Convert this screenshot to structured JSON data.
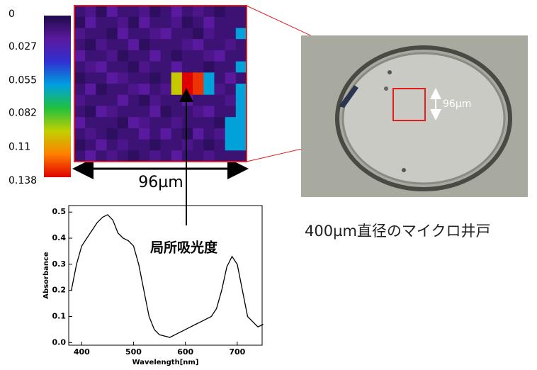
{
  "chart_data": [
    {
      "type": "heatmap",
      "zlim": [
        0,
        0.138
      ],
      "zticks": [
        0,
        0.027,
        0.055,
        0.082,
        0.11,
        0.138
      ],
      "colormap": [
        "#1f0a4a",
        "#5a1a9e",
        "#3030d0",
        "#00a0e0",
        "#20c040",
        "#c0d000",
        "#ff8000",
        "#e00000"
      ],
      "values": [
        [
          0.01,
          0.015,
          0.005,
          0.02,
          0.01,
          0.01,
          0.015,
          0.005,
          0.01,
          0.02,
          0.01,
          0.015,
          0.01,
          0.005,
          0.01,
          0.01
        ],
        [
          0.005,
          0.02,
          0.01,
          0.01,
          0.015,
          0.005,
          0.02,
          0.01,
          0.01,
          0.015,
          0.005,
          0.01,
          0.02,
          0.01,
          0.01,
          0.01
        ],
        [
          0.015,
          0.01,
          0.01,
          0.005,
          0.02,
          0.01,
          0.01,
          0.015,
          0.02,
          0.01,
          0.01,
          0.005,
          0.015,
          0.01,
          0.01,
          0.06
        ],
        [
          0.01,
          0.005,
          0.015,
          0.01,
          0.01,
          0.02,
          0.005,
          0.01,
          0.01,
          0.01,
          0.015,
          0.02,
          0.01,
          0.01,
          0.015,
          0.01
        ],
        [
          0.02,
          0.01,
          0.01,
          0.015,
          0.005,
          0.01,
          0.01,
          0.02,
          0.01,
          0.005,
          0.01,
          0.01,
          0.015,
          0.02,
          0.01,
          0.01
        ],
        [
          0.01,
          0.015,
          0.02,
          0.01,
          0.01,
          0.005,
          0.015,
          0.01,
          0.01,
          0.02,
          0.01,
          0.01,
          0.005,
          0.01,
          0.01,
          0.06
        ],
        [
          0.005,
          0.01,
          0.01,
          0.02,
          0.015,
          0.01,
          0.01,
          0.005,
          0.01,
          0.1,
          0.138,
          0.13,
          0.06,
          0.01,
          0.02,
          0.01
        ],
        [
          0.01,
          0.02,
          0.005,
          0.01,
          0.01,
          0.015,
          0.02,
          0.01,
          0.015,
          0.1,
          0.138,
          0.13,
          0.06,
          0.015,
          0.01,
          0.06
        ],
        [
          0.015,
          0.01,
          0.01,
          0.01,
          0.02,
          0.01,
          0.005,
          0.015,
          0.01,
          0.01,
          0.02,
          0.01,
          0.01,
          0.01,
          0.015,
          0.06
        ],
        [
          0.01,
          0.005,
          0.02,
          0.015,
          0.01,
          0.01,
          0.01,
          0.02,
          0.005,
          0.01,
          0.01,
          0.015,
          0.02,
          0.01,
          0.01,
          0.06
        ],
        [
          0.02,
          0.01,
          0.01,
          0.01,
          0.005,
          0.02,
          0.015,
          0.01,
          0.01,
          0.015,
          0.01,
          0.01,
          0.01,
          0.005,
          0.06,
          0.06
        ],
        [
          0.01,
          0.015,
          0.01,
          0.005,
          0.01,
          0.01,
          0.02,
          0.01,
          0.02,
          0.01,
          0.005,
          0.02,
          0.01,
          0.015,
          0.06,
          0.06
        ],
        [
          0.005,
          0.01,
          0.02,
          0.01,
          0.015,
          0.01,
          0.01,
          0.005,
          0.01,
          0.01,
          0.015,
          0.01,
          0.005,
          0.01,
          0.06,
          0.06
        ],
        [
          0.01,
          0.02,
          0.01,
          0.015,
          0.01,
          0.005,
          0.01,
          0.015,
          0.01,
          0.02,
          0.01,
          0.01,
          0.015,
          0.01,
          0.01,
          0.01
        ]
      ]
    },
    {
      "type": "line",
      "xlabel": "Wavelength[nm]",
      "ylabel": "Absorbance",
      "color": "#000000",
      "xlim": [
        375,
        748
      ],
      "ylim": [
        -0.01,
        0.525
      ],
      "xticks": [
        400,
        500,
        600,
        700
      ],
      "yticks": [
        {
          "value": 0,
          "label": "0.0"
        },
        0.1,
        0.2,
        0.3,
        0.4,
        0.5
      ],
      "x": [
        380,
        390,
        400,
        410,
        420,
        430,
        440,
        450,
        460,
        470,
        480,
        490,
        500,
        510,
        520,
        530,
        540,
        550,
        560,
        570,
        580,
        590,
        600,
        610,
        620,
        630,
        640,
        650,
        660,
        670,
        680,
        690,
        700,
        710,
        720,
        730,
        740,
        750
      ],
      "values": [
        0.2,
        0.3,
        0.37,
        0.4,
        0.43,
        0.46,
        0.48,
        0.49,
        0.47,
        0.42,
        0.4,
        0.39,
        0.37,
        0.3,
        0.2,
        0.1,
        0.05,
        0.03,
        0.025,
        0.02,
        0.03,
        0.04,
        0.05,
        0.06,
        0.07,
        0.08,
        0.09,
        0.1,
        0.13,
        0.2,
        0.29,
        0.33,
        0.3,
        0.2,
        0.1,
        0.08,
        0.06,
        0.07
      ]
    }
  ],
  "annotations": [
    "96µm",
    "局所吸光度",
    "96µm",
    "400µm直径のマイクロ井戸"
  ]
}
